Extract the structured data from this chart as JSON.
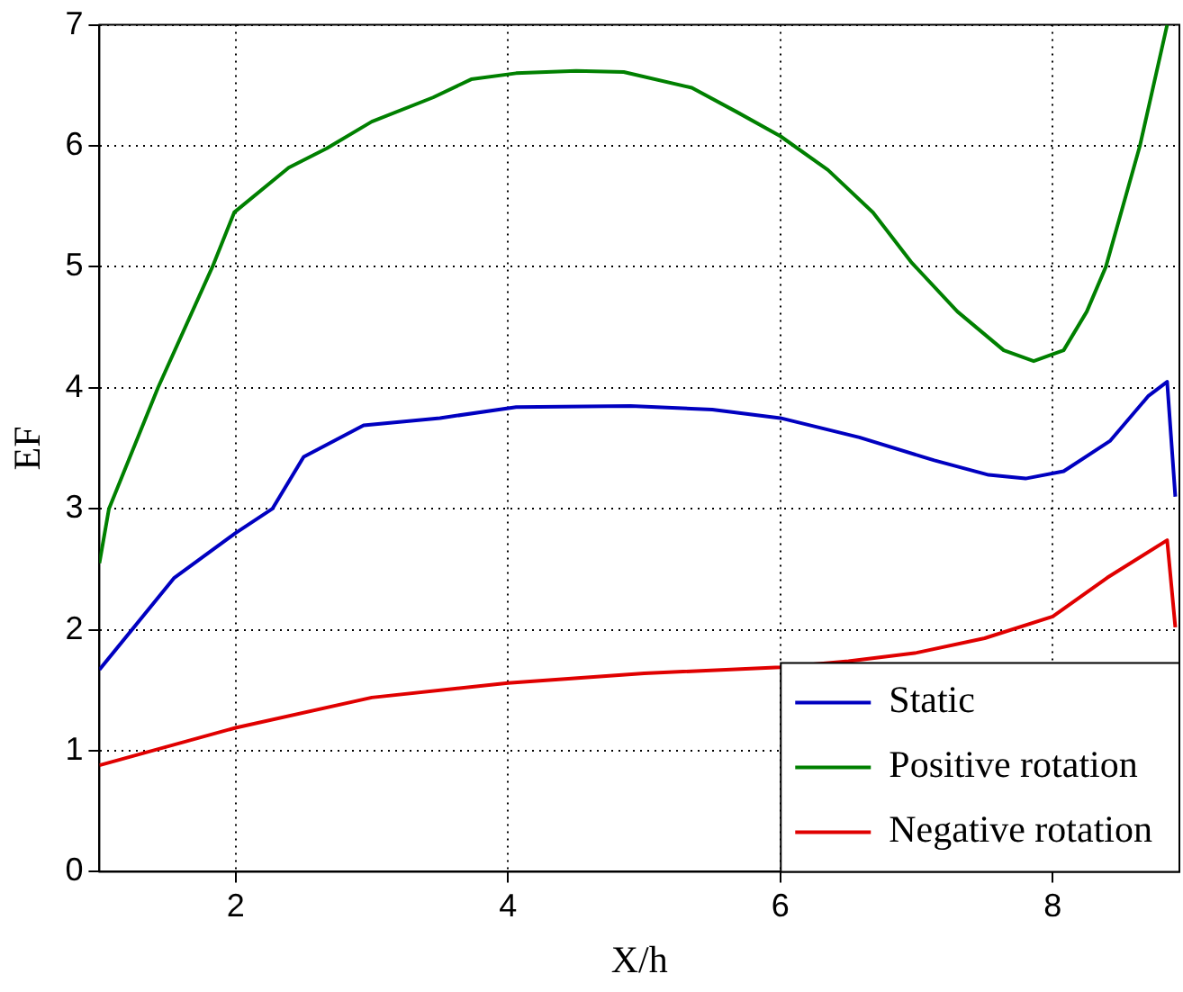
{
  "chart_data": {
    "type": "line",
    "xlabel": "X/h",
    "ylabel": "EF",
    "xlim": [
      1,
      8.93
    ],
    "xticks": [
      2,
      4,
      6,
      8
    ],
    "ylim": [
      0,
      7
    ],
    "yticks": [
      0,
      1,
      2,
      3,
      4,
      5,
      6,
      7
    ],
    "grid": true,
    "legend": "bottom right",
    "marker": "none",
    "line_style": "solid",
    "series": [
      {
        "name": "Static",
        "color": "#0000c0",
        "x": [
          1,
          1.55,
          2,
          2.27,
          2.5,
          2.94,
          3.5,
          4.06,
          4.9,
          5.5,
          6,
          6.58,
          7.13,
          7.53,
          7.8,
          8.08,
          8.42,
          8.7,
          8.84,
          8.9
        ],
        "values": [
          1.67,
          2.43,
          2.8,
          3.0,
          3.43,
          3.69,
          3.75,
          3.84,
          3.85,
          3.82,
          3.75,
          3.59,
          3.4,
          3.28,
          3.25,
          3.31,
          3.56,
          3.93,
          4.05,
          3.1
        ]
      },
      {
        "name": "Positive rotation",
        "color": "#008000",
        "x": [
          1,
          1.07,
          1.43,
          1.83,
          1.99,
          2.39,
          2.67,
          3.0,
          3.45,
          3.73,
          4.06,
          4.5,
          4.85,
          5.35,
          5.68,
          6.0,
          6.35,
          6.68,
          6.96,
          7.3,
          7.64,
          7.86,
          8.08,
          8.25,
          8.39,
          8.64,
          8.84
        ],
        "values": [
          2.55,
          3.0,
          4.0,
          5.0,
          5.45,
          5.82,
          5.98,
          6.2,
          6.4,
          6.55,
          6.6,
          6.62,
          6.61,
          6.48,
          6.28,
          6.08,
          5.8,
          5.45,
          5.04,
          4.63,
          4.31,
          4.22,
          4.31,
          4.63,
          5.0,
          6.0,
          7.0
        ]
      },
      {
        "name": "Negative rotation",
        "color": "#e00000",
        "x": [
          1,
          2,
          3,
          4,
          5,
          6,
          6.5,
          7,
          7.5,
          8,
          8.4,
          8.84,
          8.9
        ],
        "values": [
          0.88,
          1.19,
          1.44,
          1.56,
          1.64,
          1.69,
          1.74,
          1.81,
          1.93,
          2.11,
          2.43,
          2.74,
          2.02
        ]
      }
    ]
  }
}
